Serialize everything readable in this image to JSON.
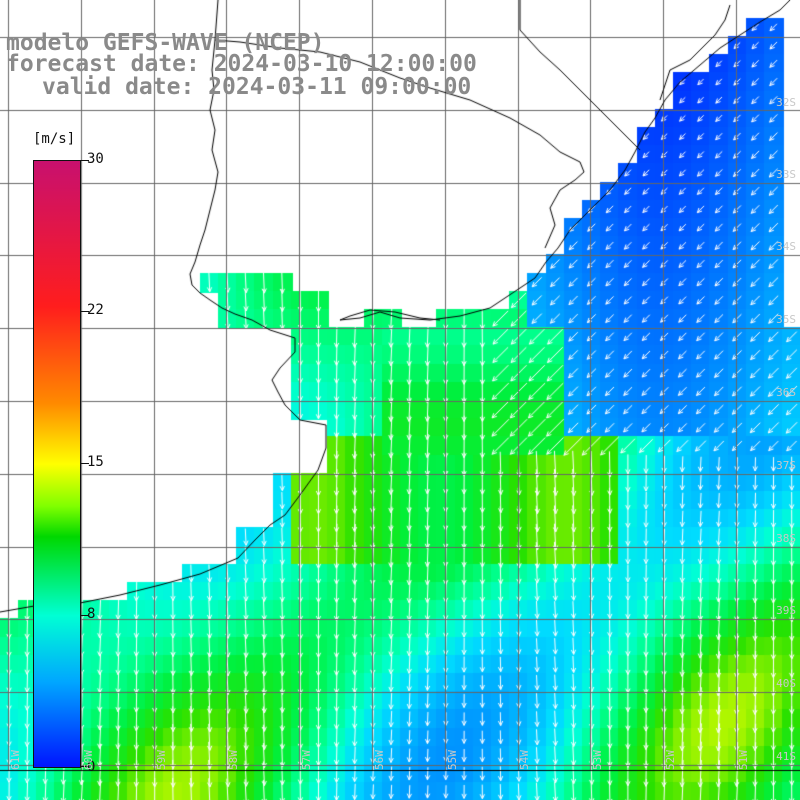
{
  "title": {
    "line1": "modelo GEFS-WAVE (NCEP)",
    "line2": "forecast date: 2024-03-10 12:00:00",
    "line3": "valid date: 2024-03-11 09:00:00"
  },
  "colorbar": {
    "unit": "[m/s]",
    "ticks": [
      {
        "label": "30",
        "value": 30
      },
      {
        "label": "22",
        "value": 22
      },
      {
        "label": "15",
        "value": 15
      },
      {
        "label": "8",
        "value": 8
      },
      {
        "label": "0",
        "value": 0
      }
    ],
    "range": [
      0,
      30
    ]
  },
  "map": {
    "grid": true,
    "lat_labels": [
      "32S",
      "33S",
      "34S",
      "35S",
      "36S",
      "37S",
      "38S",
      "39S",
      "40S",
      "41S"
    ],
    "lon_labels": [
      "61W",
      "60W",
      "59W",
      "58W",
      "57W",
      "56W",
      "55W",
      "54W",
      "53W",
      "52W",
      "51W"
    ],
    "colors": {
      "land": "#ffffff",
      "coast": "#000000",
      "grid": "#666666",
      "arrows": "#ffffff"
    }
  }
}
